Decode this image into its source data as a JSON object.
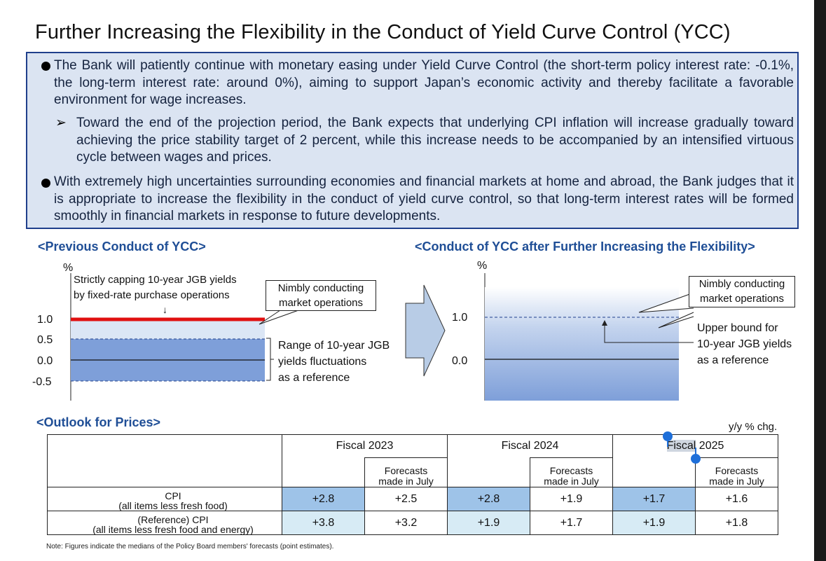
{
  "slide": {
    "title": "Further Increasing the Flexibility in the Conduct of Yield Curve Control (YCC)"
  },
  "summary": {
    "bullet1": "The Bank will patiently continue with monetary easing under Yield Curve Control (the short-term policy interest rate: -0.1%, the long-term interest rate: around 0%), aiming to support Japan’s economic activity and thereby facilitate a favorable environment for wage increases.",
    "sub1": "Toward the end of the projection period, the Bank expects that underlying CPI inflation will increase gradually toward achieving the price stability target of 2 percent, while this increase needs to be accompanied by an intensified virtuous cycle between wages and prices.",
    "bullet2": "With extremely high uncertainties surrounding economies and financial markets at home and abroad, the Bank judges that it is appropriate to increase the flexibility in the conduct of yield curve control, so that long-term interest rates will be formed smoothly in financial markets in response to future developments."
  },
  "previous": {
    "heading": "<Previous Conduct of YCC>",
    "unit": "%",
    "ticks": [
      "1.0",
      "0.5",
      "0.0",
      "-0.5"
    ],
    "cap_label_line1": "Strictly capping 10-year JGB yields",
    "cap_label_line2": "by fixed-rate purchase operations",
    "down_arrow": "↓",
    "callout_line1": "Nimbly conducting",
    "callout_line2": "market operations",
    "range_line1": "Range of 10-year JGB",
    "range_line2": "yields fluctuations",
    "range_line3": "as a reference"
  },
  "after": {
    "heading": "<Conduct of YCC after Further Increasing the Flexibility>",
    "unit": "%",
    "ticks": [
      "1.0",
      "0.0"
    ],
    "callout_line1": "Nimbly conducting",
    "callout_line2": "market operations",
    "upper_line1": "Upper bound for",
    "upper_line2": "10-year JGB yields",
    "upper_line3": "as a reference"
  },
  "outlook": {
    "heading": "<Outlook for Prices>",
    "unit_note": "y/y % chg.",
    "fiscal": [
      "Fiscal 2023",
      "Fiscal 2024",
      "Fiscal 2025"
    ],
    "fiscal2025_part1": "Fiscal",
    "fiscal2025_part2": " 2025",
    "forecast_line1": "Forecasts",
    "forecast_line2": "made in July",
    "rows": [
      {
        "label_line1": "CPI",
        "label_line2": "(all items less fresh food)",
        "values": [
          "+2.8",
          "+2.5",
          "+2.8",
          "+1.9",
          "+1.7",
          "+1.6"
        ]
      },
      {
        "label_line1": "(Reference) CPI",
        "label_line2": "(all items less fresh food and energy)",
        "values": [
          "+3.8",
          "+3.2",
          "+1.9",
          "+1.7",
          "+1.9",
          "+1.8"
        ]
      }
    ],
    "note": "Note: Figures indicate the medians of the Policy Board members' forecasts (point estimates)."
  },
  "colors": {
    "accent": "#1f4e96",
    "summary_bg": "#dbe4f2",
    "summary_border": "#1f3f8c",
    "cap_line": "#e01010",
    "range_fill": "#7e9fd9",
    "highlight_cell": "#9ec3e8",
    "light_cell": "#d7ebf5",
    "selection_handle": "#1e6fd9"
  }
}
